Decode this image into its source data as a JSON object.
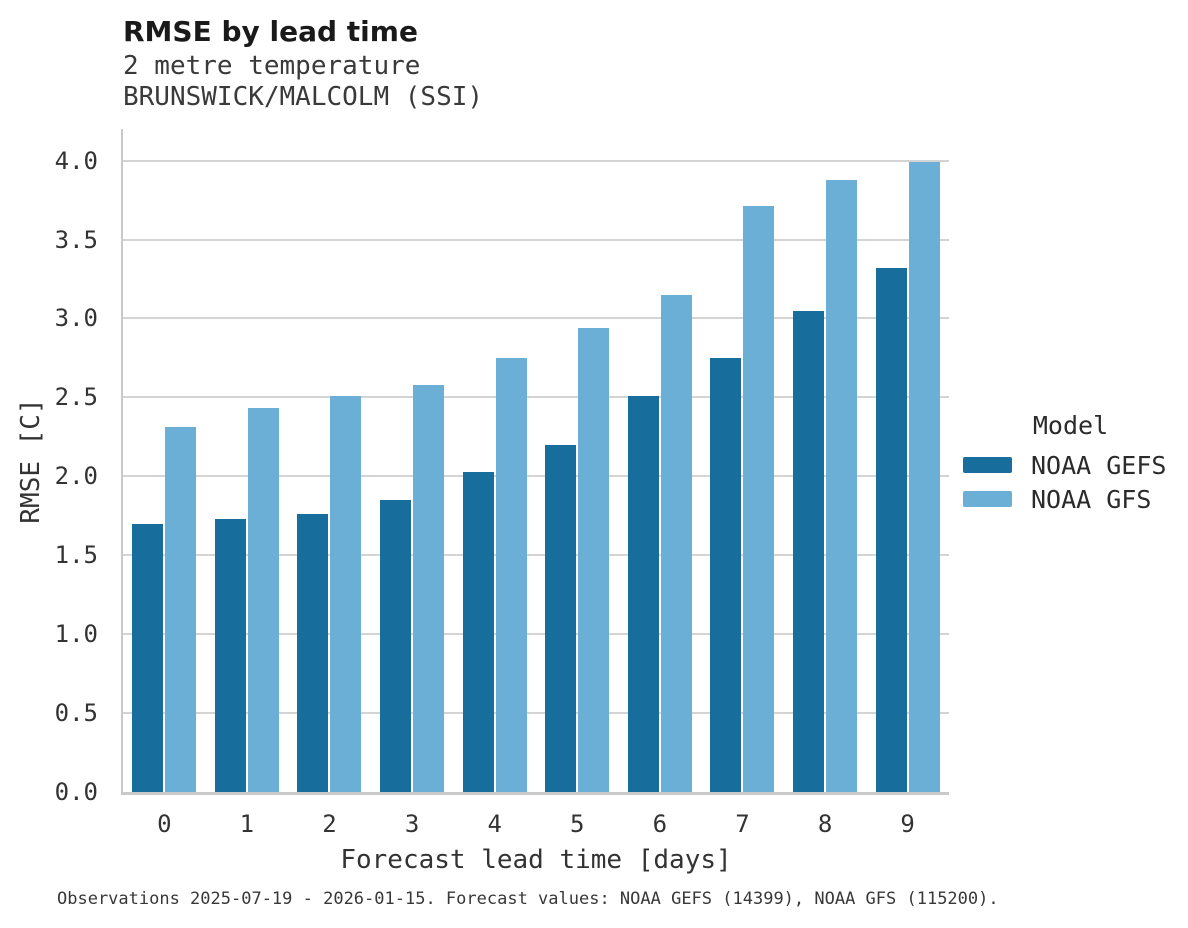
{
  "header": {
    "title": "RMSE by lead time",
    "subtitle1": "2 metre temperature",
    "subtitle2": "BRUNSWICK/MALCOLM (SSI)"
  },
  "chart_data": {
    "type": "bar",
    "title": "RMSE by lead time",
    "subtitle": "2 metre temperature, BRUNSWICK/MALCOLM (SSI)",
    "xlabel": "Forecast lead time [days]",
    "ylabel": "RMSE [C]",
    "categories": [
      "0",
      "1",
      "2",
      "3",
      "4",
      "5",
      "6",
      "7",
      "8",
      "9"
    ],
    "series": [
      {
        "name": "NOAA GEFS",
        "color": "#176e9d",
        "values": [
          1.7,
          1.73,
          1.76,
          1.85,
          2.03,
          2.2,
          2.51,
          2.75,
          3.05,
          3.32
        ]
      },
      {
        "name": "NOAA GFS",
        "color": "#6bafd6",
        "values": [
          2.31,
          2.43,
          2.51,
          2.58,
          2.75,
          2.94,
          3.15,
          3.71,
          3.88,
          3.99
        ]
      }
    ],
    "ylim": [
      0,
      4.2
    ],
    "yticks": [
      0.0,
      0.5,
      1.0,
      1.5,
      2.0,
      2.5,
      3.0,
      3.5,
      4.0
    ],
    "grid": "horizontal",
    "legend_title": "Model",
    "legend_position": "right of plot, middle"
  },
  "legend": {
    "title": "Model",
    "entries": [
      {
        "label": "NOAA GEFS",
        "color": "#176e9d"
      },
      {
        "label": "NOAA GFS",
        "color": "#6bafd6"
      }
    ]
  },
  "footer": {
    "caption": "Observations 2025-07-19 - 2026-01-15. Forecast values: NOAA GEFS (14399), NOAA GFS (115200)."
  },
  "colors": {
    "gridline": "#d4d4d4",
    "spine": "#c9c9c9",
    "text": "#262626",
    "background": "#ffffff"
  }
}
